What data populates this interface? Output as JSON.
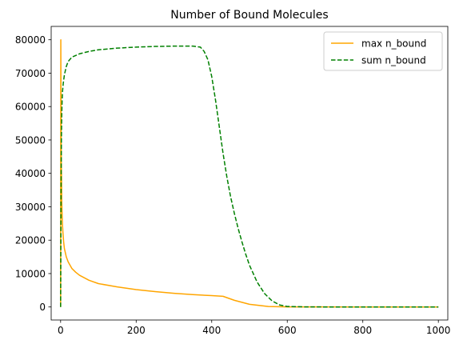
{
  "chart_data": {
    "type": "line",
    "title": "Number of Bound Molecules",
    "xlabel": "",
    "ylabel": "",
    "xlim": [
      -25,
      1025
    ],
    "ylim": [
      -3900,
      84000
    ],
    "xticks": [
      0,
      200,
      400,
      600,
      800,
      1000
    ],
    "yticks": [
      0,
      10000,
      20000,
      30000,
      40000,
      50000,
      60000,
      70000,
      80000
    ],
    "grid": false,
    "legend_position": "top-right",
    "series": [
      {
        "name": "max n_bound",
        "color": "#ffa500",
        "style": "solid",
        "x": [
          0,
          0.5,
          1,
          1.5,
          2,
          2.5,
          3,
          4,
          5,
          6,
          8,
          10,
          15,
          20,
          30,
          40,
          50,
          75,
          100,
          150,
          200,
          250,
          300,
          350,
          400,
          430,
          460,
          500,
          550,
          600,
          700,
          800,
          900,
          1000
        ],
        "y": [
          0,
          80000,
          62000,
          50000,
          42000,
          38000,
          32000,
          27500,
          24500,
          22500,
          19500,
          17500,
          15000,
          13500,
          11500,
          10400,
          9500,
          8000,
          7000,
          6000,
          5200,
          4600,
          4100,
          3700,
          3400,
          3200,
          2000,
          800,
          150,
          30,
          10,
          5,
          3,
          2
        ]
      },
      {
        "name": "sum n_bound",
        "color": "#008000",
        "style": "dashed",
        "x": [
          0,
          0.5,
          1,
          2,
          3,
          4,
          5,
          7,
          10,
          15,
          20,
          30,
          50,
          75,
          100,
          150,
          200,
          250,
          300,
          350,
          370,
          380,
          390,
          400,
          410,
          420,
          430,
          440,
          450,
          460,
          470,
          480,
          490,
          500,
          520,
          540,
          560,
          580,
          600,
          650,
          700,
          800,
          900,
          1000
        ],
        "y": [
          0,
          16000,
          32000,
          50000,
          58000,
          62000,
          64500,
          67000,
          69500,
          72000,
          73500,
          74800,
          75800,
          76500,
          77000,
          77500,
          77800,
          78000,
          78100,
          78100,
          77800,
          76500,
          74000,
          69000,
          62000,
          54000,
          46000,
          39000,
          33000,
          28000,
          23500,
          19500,
          15800,
          12500,
          7500,
          4000,
          1800,
          600,
          150,
          20,
          5,
          2,
          1,
          0
        ]
      }
    ]
  }
}
